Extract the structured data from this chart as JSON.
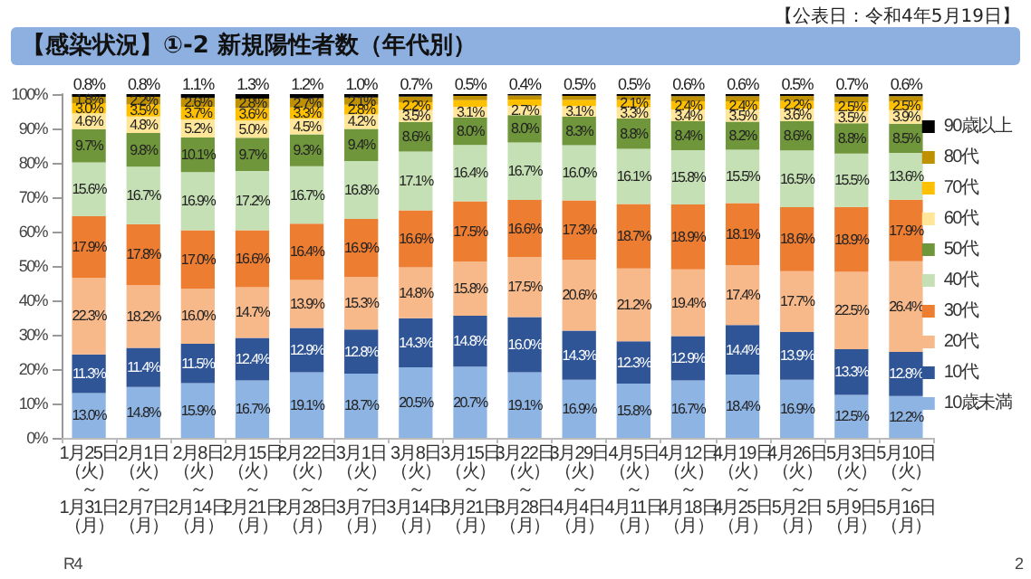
{
  "chart_data": {
    "type": "bar",
    "stacked": true,
    "title": "【感染状況】①-2 新規陽性者数（年代別）",
    "annotations": [
      "【公表日：令和4年5月19日】",
      "R4",
      "2"
    ],
    "categories": [
      "1月25日（火）～1月31日（月）",
      "2月1日（火）～2月7日（月）",
      "2月8日（火）～2月14日（月）",
      "2月15日（火）～2月21日（月）",
      "2月22日（火）～2月28日（月）",
      "3月1日（火）～3月7日（月）",
      "3月8日（火）～3月14日（月）",
      "3月15日（火）～3月21日（月）",
      "3月22日（火）～3月28日（月）",
      "3月29日（火）～4月4日（月）",
      "4月5日（火）～4月11日（月）",
      "4月12日（火）～4月18日（月）",
      "4月19日（火）～4月25日（月）",
      "4月26日（火）～5月2日（月）",
      "5月3日（火）～5月9日（月）",
      "5月10日（火）～5月16日（月）"
    ],
    "ylim": [
      0,
      100
    ],
    "yticks": [
      {
        "value": 0,
        "label": "0%"
      },
      {
        "value": 10,
        "label": "10%"
      },
      {
        "value": 20,
        "label": "20%"
      },
      {
        "value": 30,
        "label": "30%"
      },
      {
        "value": 40,
        "label": "40%"
      },
      {
        "value": 50,
        "label": "50%"
      },
      {
        "value": 60,
        "label": "60%"
      },
      {
        "value": 70,
        "label": "70%"
      },
      {
        "value": 80,
        "label": "80%"
      },
      {
        "value": 90,
        "label": "90%"
      },
      {
        "value": 100,
        "label": "100%"
      }
    ],
    "legend": "right",
    "series": [
      {
        "name": "10歳未満",
        "color": "#8eb4e3",
        "values": [
          13.0,
          14.8,
          15.9,
          16.7,
          19.1,
          18.7,
          20.5,
          20.7,
          19.1,
          16.9,
          15.8,
          16.7,
          18.4,
          16.9,
          12.5,
          12.2
        ],
        "value_labels": [
          "13.0%",
          "14.8%",
          "15.9%",
          "16.7%",
          "19.1%",
          "18.7%",
          "20.5%",
          "20.7%",
          "19.1%",
          "16.9%",
          "15.8%",
          "16.7%",
          "18.4%",
          "16.9%",
          "12.5%",
          "12.2%"
        ]
      },
      {
        "name": "10代",
        "color": "#2f5597",
        "values": [
          11.3,
          11.4,
          11.5,
          12.4,
          12.9,
          12.8,
          14.3,
          14.8,
          16.0,
          14.3,
          12.3,
          12.9,
          14.4,
          13.9,
          13.3,
          12.8
        ],
        "value_labels": [
          "11.3%",
          "11.4%",
          "11.5%",
          "12.4%",
          "12.9%",
          "12.8%",
          "14.3%",
          "14.8%",
          "16.0%",
          "14.3%",
          "12.3%",
          "12.9%",
          "14.4%",
          "13.9%",
          "13.3%",
          "12.8%"
        ]
      },
      {
        "name": "20代",
        "color": "#f8b98a",
        "values": [
          22.3,
          18.2,
          16.0,
          14.7,
          13.9,
          15.3,
          14.8,
          15.8,
          17.5,
          20.6,
          21.2,
          19.4,
          17.4,
          17.7,
          22.5,
          26.4
        ],
        "value_labels": [
          "22.3%",
          "18.2%",
          "16.0%",
          "14.7%",
          "13.9%",
          "15.3%",
          "14.8%",
          "15.8%",
          "17.5%",
          "20.6%",
          "21.2%",
          "19.4%",
          "17.4%",
          "17.7%",
          "22.5%",
          "26.4%"
        ]
      },
      {
        "name": "30代",
        "color": "#ed7d31",
        "values": [
          17.9,
          17.8,
          17.0,
          16.6,
          16.4,
          16.9,
          16.6,
          17.5,
          16.6,
          17.3,
          18.7,
          18.9,
          18.1,
          18.6,
          18.9,
          17.9
        ],
        "value_labels": [
          "17.9%",
          "17.8%",
          "17.0%",
          "16.6%",
          "16.4%",
          "16.9%",
          "16.6%",
          "17.5%",
          "16.6%",
          "17.3%",
          "18.7%",
          "18.9%",
          "18.1%",
          "18.6%",
          "18.9%",
          "17.9%"
        ]
      },
      {
        "name": "40代",
        "color": "#c5e0b4",
        "values": [
          15.6,
          16.7,
          16.9,
          17.2,
          16.7,
          16.8,
          17.1,
          16.4,
          16.7,
          16.0,
          16.1,
          15.8,
          15.5,
          16.5,
          15.5,
          13.6
        ],
        "value_labels": [
          "15.6%",
          "16.7%",
          "16.9%",
          "17.2%",
          "16.7%",
          "16.8%",
          "17.1%",
          "16.4%",
          "16.7%",
          "16.0%",
          "16.1%",
          "15.8%",
          "15.5%",
          "16.5%",
          "15.5%",
          "13.6%"
        ]
      },
      {
        "name": "50代",
        "color": "#70963b",
        "values": [
          9.7,
          9.8,
          10.1,
          9.7,
          9.3,
          9.4,
          8.6,
          8.0,
          8.0,
          8.3,
          8.8,
          8.4,
          8.2,
          8.6,
          8.8,
          8.5
        ],
        "value_labels": [
          "9.7%",
          "9.8%",
          "10.1%",
          "9.7%",
          "9.3%",
          "9.4%",
          "8.6%",
          "8.0%",
          "8.0%",
          "8.3%",
          "8.8%",
          "8.4%",
          "8.2%",
          "8.6%",
          "8.8%",
          "8.5%"
        ]
      },
      {
        "name": "60代",
        "color": "#ffe699",
        "values": [
          4.6,
          4.8,
          5.2,
          5.0,
          4.5,
          4.2,
          3.5,
          3.1,
          2.7,
          3.1,
          3.3,
          3.4,
          3.5,
          3.6,
          3.5,
          3.9
        ],
        "value_labels": [
          "4.6%",
          "4.8%",
          "5.2%",
          "5.0%",
          "4.5%",
          "4.2%",
          "3.5%",
          "3.1%",
          "2.7%",
          "3.1%",
          "3.3%",
          "3.4%",
          "3.5%",
          "3.6%",
          "3.5%",
          "3.9%"
        ]
      },
      {
        "name": "70代",
        "color": "#ffc000",
        "values": [
          3.0,
          3.5,
          3.7,
          3.6,
          3.3,
          2.8,
          2.2,
          1.9,
          1.8,
          1.8,
          2.1,
          2.4,
          2.4,
          2.2,
          2.5,
          2.5
        ],
        "value_labels": [
          "3.0%",
          "3.5%",
          "3.7%",
          "3.6%",
          "3.3%",
          "2.8%",
          "2.2%",
          null,
          null,
          null,
          "2.1%",
          "2.4%",
          "2.4%",
          "2.2%",
          "2.5%",
          "2.5%"
        ]
      },
      {
        "name": "80代",
        "color": "#bf9000",
        "values": [
          1.8,
          2.2,
          2.6,
          2.8,
          2.7,
          2.1,
          1.7,
          1.3,
          1.2,
          1.2,
          1.2,
          1.5,
          1.5,
          1.5,
          1.8,
          1.6
        ],
        "value_labels": [
          "1.8%",
          "2.2%",
          "2.6%",
          "2.8%",
          "2.7%",
          "2.1%",
          null,
          null,
          null,
          null,
          null,
          null,
          null,
          null,
          null,
          null
        ]
      },
      {
        "name": "90歳以上",
        "color": "#000000",
        "values": [
          0.8,
          0.8,
          1.1,
          1.3,
          1.2,
          1.0,
          0.7,
          0.5,
          0.4,
          0.5,
          0.5,
          0.6,
          0.6,
          0.5,
          0.7,
          0.6
        ],
        "value_labels": [
          "0.8%",
          "0.8%",
          "1.1%",
          "1.3%",
          "1.2%",
          "1.0%",
          "0.7%",
          "0.5%",
          "0.4%",
          "0.5%",
          "0.5%",
          "0.6%",
          "0.6%",
          "0.5%",
          "0.7%",
          "0.6%"
        ]
      }
    ]
  }
}
